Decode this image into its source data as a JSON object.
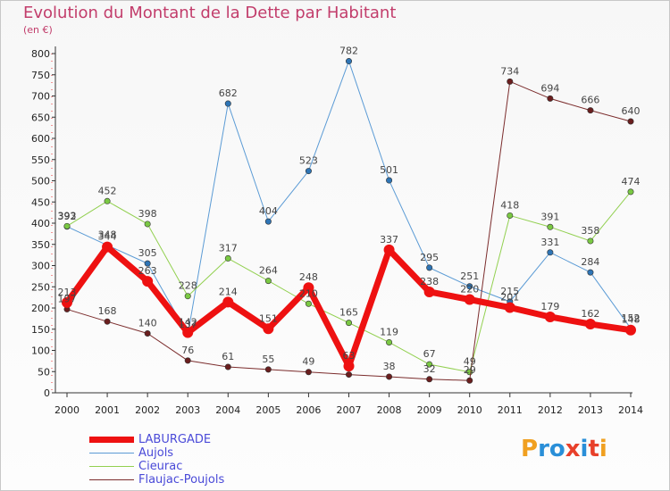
{
  "header": {
    "title": "Evolution du Montant de la Dette par Habitant",
    "subtitle": "(en €)"
  },
  "logo": {
    "text": "Proxiti",
    "colors": [
      "#f0a020",
      "#2a8fd8",
      "#2a8fd8",
      "#e8402a",
      "#2a8fd8",
      "#e8402a",
      "#f0a020"
    ]
  },
  "chart_data": {
    "type": "line",
    "title": "Evolution du Montant de la Dette par Habitant",
    "subtitle": "(en €)",
    "x": [
      "2000",
      "2001",
      "2002",
      "2003",
      "2004",
      "2005",
      "2006",
      "2007",
      "2008",
      "2009",
      "2010",
      "2011",
      "2012",
      "2013",
      "2014"
    ],
    "ylim": [
      0,
      800
    ],
    "yticks": [
      0,
      50,
      100,
      150,
      200,
      250,
      300,
      350,
      400,
      450,
      500,
      550,
      600,
      650,
      700,
      750,
      800
    ],
    "grid": false,
    "legend_position": "bottom-left",
    "series": [
      {
        "name": "Aujols",
        "color": "#5b9bd5",
        "point_color": "#2e75b6",
        "width": 1,
        "values": [
          392,
          348,
          305,
          137,
          682,
          404,
          523,
          782,
          501,
          295,
          251,
          215,
          331,
          284,
          152
        ]
      },
      {
        "name": "Cieurac",
        "color": "#92d050",
        "point_color": "#7ac943",
        "width": 1,
        "values": [
          393,
          452,
          398,
          228,
          317,
          264,
          210,
          165,
          119,
          67,
          49,
          418,
          391,
          358,
          474
        ]
      },
      {
        "name": "Flaujac-Poujols",
        "color": "#7b2c2c",
        "point_color": "#6a1e1e",
        "width": 1,
        "values": [
          197,
          168,
          140,
          76,
          61,
          55,
          49,
          43,
          38,
          32,
          29,
          734,
          694,
          666,
          640
        ]
      },
      {
        "name": "LABURGADE",
        "color": "#ee1111",
        "point_color": "#ee1111",
        "width": 7,
        "values": [
          213,
          344,
          263,
          142,
          214,
          151,
          248,
          63,
          337,
          238,
          220,
          201,
          179,
          162,
          148
        ]
      }
    ],
    "labels": {
      "Aujols": [
        "392",
        "348",
        "305",
        "137",
        "682",
        "404",
        "523",
        "782",
        "501",
        "295",
        "251",
        "215",
        "331",
        "284",
        "152"
      ],
      "Cieurac": [
        "393",
        "452",
        "398",
        "228",
        "317",
        "264",
        "210",
        "165",
        "119",
        "67",
        "49",
        "418",
        "391",
        "358",
        "474"
      ],
      "Flaujac-Poujols": [
        "197",
        "168",
        "140",
        "76",
        "61",
        "55",
        "49",
        "",
        "38",
        "32",
        "29",
        "734",
        "694",
        "666",
        "640"
      ],
      "LABURGADE": [
        "213",
        "344",
        "263",
        "142",
        "214",
        "151",
        "248",
        "63",
        "337",
        "238",
        "220",
        "201",
        "179",
        "162",
        "148"
      ]
    }
  },
  "legend": [
    {
      "name": "LABURGADE",
      "color": "#ee1111",
      "width": 7
    },
    {
      "name": "Aujols",
      "color": "#5b9bd5",
      "width": 1
    },
    {
      "name": "Cieurac",
      "color": "#92d050",
      "width": 1
    },
    {
      "name": "Flaujac-Poujols",
      "color": "#7b2c2c",
      "width": 1
    }
  ]
}
